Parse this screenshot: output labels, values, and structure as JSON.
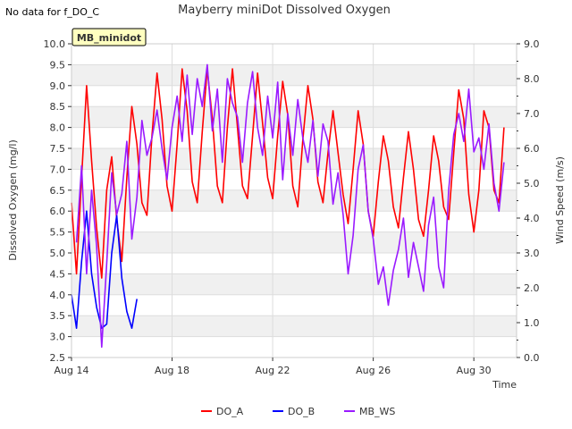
{
  "no_data_note": "No data for f_DO_C",
  "chart_data": {
    "type": "line",
    "title": "Mayberry miniDot Dissolved Oxygen",
    "badge": "MB_minidot",
    "xlabel": "Time",
    "ylabel": "Dissolved Oxygen (mg/l)",
    "y2label": "Wind Speed (m/s)",
    "xlim": [
      "Aug 14",
      "Aug 31.7"
    ],
    "ylim": [
      2.5,
      10.0
    ],
    "y2lim": [
      0.0,
      9.0
    ],
    "x_ticks": [
      "Aug 14",
      "Aug 18",
      "Aug 22",
      "Aug 26",
      "Aug 30"
    ],
    "y_ticks": [
      "2.5",
      "3.0",
      "3.5",
      "4.0",
      "4.5",
      "5.0",
      "5.5",
      "6.0",
      "6.5",
      "7.0",
      "7.5",
      "8.0",
      "8.5",
      "9.0",
      "9.5",
      "10.0"
    ],
    "y2_ticks": [
      "0.0",
      "1.0",
      "2.0",
      "3.0",
      "4.0",
      "5.0",
      "6.0",
      "7.0",
      "8.0",
      "9.0"
    ],
    "grid": true,
    "legend_position": "bottom-center",
    "colors": {
      "DO_A": "#ff0000",
      "DO_B": "#0000ff",
      "MB_WS": "#9a1aff",
      "band": "#f0f0f0"
    },
    "series": [
      {
        "name": "DO_A",
        "axis": "left",
        "x": [
          14.0,
          14.2,
          14.4,
          14.6,
          14.8,
          15.0,
          15.2,
          15.4,
          15.6,
          15.8,
          16.0,
          16.2,
          16.4,
          16.6,
          16.8,
          17.0,
          17.2,
          17.4,
          17.6,
          17.8,
          18.0,
          18.2,
          18.4,
          18.6,
          18.8,
          19.0,
          19.2,
          19.4,
          19.6,
          19.8,
          20.0,
          20.2,
          20.4,
          20.6,
          20.8,
          21.0,
          21.2,
          21.4,
          21.6,
          21.8,
          22.0,
          22.2,
          22.4,
          22.6,
          22.8,
          23.0,
          23.2,
          23.4,
          23.6,
          23.8,
          24.0,
          24.2,
          24.4,
          24.6,
          24.8,
          25.0,
          25.2,
          25.4,
          25.6,
          25.8,
          26.0,
          26.2,
          26.4,
          26.6,
          26.8,
          27.0,
          27.2,
          27.4,
          27.6,
          27.8,
          28.0,
          28.2,
          28.4,
          28.6,
          28.8,
          29.0,
          29.2,
          29.4,
          29.6,
          29.8,
          30.0,
          30.2,
          30.4,
          30.6,
          30.8,
          31.0,
          31.2
        ],
        "y": [
          6.2,
          4.5,
          6.8,
          9.0,
          7.2,
          5.6,
          4.4,
          6.5,
          7.3,
          5.8,
          4.8,
          6.8,
          8.5,
          7.6,
          6.2,
          5.9,
          7.8,
          9.3,
          8.2,
          6.6,
          6.0,
          7.6,
          9.4,
          8.4,
          6.7,
          6.2,
          7.9,
          9.4,
          8.2,
          6.6,
          6.2,
          8.0,
          9.4,
          8.0,
          6.6,
          6.3,
          7.8,
          9.3,
          8.1,
          6.8,
          6.3,
          7.8,
          9.1,
          8.3,
          6.6,
          6.1,
          7.7,
          9.0,
          8.2,
          6.7,
          6.2,
          7.4,
          8.4,
          7.4,
          6.4,
          5.7,
          7.0,
          8.4,
          7.6,
          6.0,
          5.4,
          6.7,
          7.8,
          7.2,
          6.1,
          5.6,
          6.8,
          7.9,
          7.0,
          5.8,
          5.4,
          6.5,
          7.8,
          7.2,
          6.1,
          5.8,
          7.4,
          8.9,
          8.2,
          6.4,
          5.5,
          6.5,
          8.4,
          8.0,
          6.5,
          6.2,
          8.0
        ]
      },
      {
        "name": "DO_B",
        "axis": "left",
        "x": [
          14.0,
          14.2,
          14.4,
          14.6,
          14.8,
          15.0,
          15.2,
          15.4,
          15.6,
          15.8,
          16.0,
          16.2,
          16.4,
          16.6
        ],
        "y": [
          4.0,
          3.2,
          4.8,
          6.0,
          4.5,
          3.7,
          3.2,
          3.3,
          5.0,
          5.9,
          4.4,
          3.6,
          3.2,
          3.9
        ]
      },
      {
        "name": "MB_WS",
        "axis": "right",
        "x": [
          14.2,
          14.4,
          14.6,
          14.8,
          15.0,
          15.2,
          15.4,
          15.6,
          15.8,
          16.0,
          16.2,
          16.4,
          16.6,
          16.8,
          17.0,
          17.2,
          17.4,
          17.6,
          17.8,
          18.0,
          18.2,
          18.4,
          18.6,
          18.8,
          19.0,
          19.2,
          19.4,
          19.6,
          19.8,
          20.0,
          20.2,
          20.4,
          20.6,
          20.8,
          21.0,
          21.2,
          21.4,
          21.6,
          21.8,
          22.0,
          22.2,
          22.4,
          22.6,
          22.8,
          23.0,
          23.2,
          23.4,
          23.6,
          23.8,
          24.0,
          24.2,
          24.4,
          24.6,
          24.8,
          25.0,
          25.2,
          25.4,
          25.6,
          25.8,
          26.0,
          26.2,
          26.4,
          26.6,
          26.8,
          27.0,
          27.2,
          27.4,
          27.6,
          27.8,
          28.0,
          28.2,
          28.4,
          28.6,
          28.8,
          29.0,
          29.2,
          29.4,
          29.6,
          29.8,
          30.0,
          30.2,
          30.4,
          30.6,
          30.8,
          31.0,
          31.2
        ],
        "y": [
          3.3,
          5.5,
          2.4,
          4.8,
          3.2,
          0.3,
          2.7,
          5.3,
          4.1,
          4.7,
          6.2,
          3.4,
          4.6,
          6.8,
          5.8,
          6.3,
          7.1,
          6.0,
          5.1,
          6.6,
          7.5,
          6.2,
          8.1,
          6.4,
          8.0,
          7.2,
          8.4,
          6.5,
          7.7,
          5.6,
          8.0,
          7.3,
          6.9,
          5.6,
          7.3,
          8.2,
          6.6,
          5.8,
          7.5,
          6.3,
          7.9,
          5.1,
          7.0,
          5.8,
          7.4,
          6.3,
          5.6,
          6.8,
          5.2,
          6.7,
          6.2,
          4.4,
          5.3,
          4.1,
          2.4,
          3.5,
          5.4,
          6.1,
          4.2,
          3.4,
          2.1,
          2.6,
          1.5,
          2.5,
          3.1,
          4.0,
          2.3,
          3.3,
          2.6,
          1.9,
          3.8,
          4.6,
          2.6,
          2.0,
          4.8,
          6.4,
          7.0,
          6.2,
          7.7,
          5.9,
          6.3,
          5.4,
          6.7,
          5.0,
          4.2,
          5.6
        ]
      }
    ]
  }
}
